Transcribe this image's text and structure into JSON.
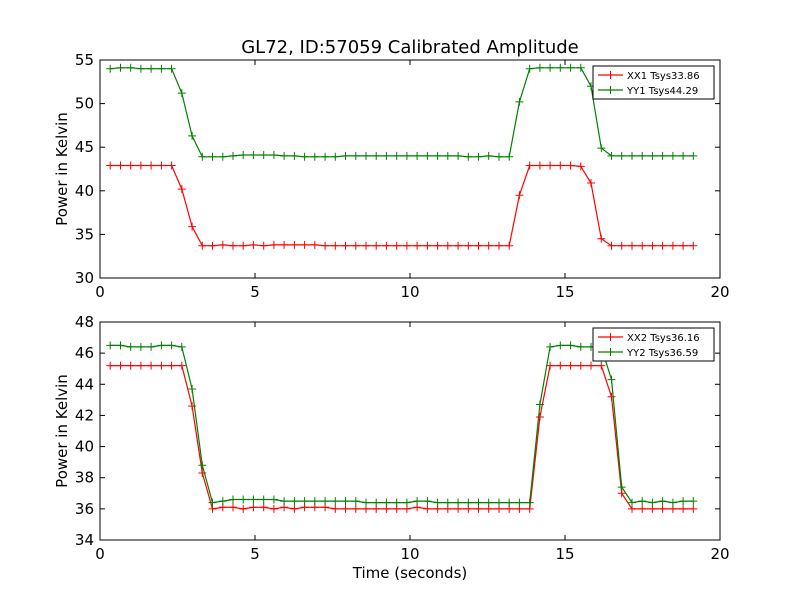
{
  "chart_data": {
    "title": "GL72, ID:57059 Calibrated Amplitude",
    "type": "line",
    "xlabel": "Time (seconds)",
    "x": [
      0.33,
      0.66,
      0.99,
      1.32,
      1.65,
      1.98,
      2.31,
      2.64,
      2.97,
      3.3,
      3.63,
      3.96,
      4.29,
      4.62,
      4.95,
      5.28,
      5.61,
      5.94,
      6.27,
      6.6,
      6.93,
      7.26,
      7.59,
      7.92,
      8.25,
      8.58,
      8.91,
      9.24,
      9.57,
      9.9,
      10.23,
      10.56,
      10.89,
      11.22,
      11.55,
      11.88,
      12.21,
      12.54,
      12.87,
      13.2,
      13.53,
      13.86,
      14.19,
      14.52,
      14.85,
      15.18,
      15.51,
      15.84,
      16.17,
      16.5,
      16.83,
      17.16,
      17.49,
      17.82,
      18.15,
      18.48,
      18.81,
      19.14
    ],
    "panels": [
      {
        "ylabel": "Power in Kelvin",
        "xlim": [
          0,
          20
        ],
        "ylim": [
          30,
          55
        ],
        "xticks": [
          0,
          5,
          10,
          15,
          20
        ],
        "yticks": [
          30,
          35,
          40,
          45,
          50,
          55
        ],
        "legend": "top-right",
        "series": [
          {
            "name": "XX1 Tsys33.86",
            "color": "#ff0000",
            "values": [
              42.9,
              42.9,
              42.9,
              42.9,
              42.9,
              42.9,
              42.9,
              40.2,
              35.9,
              33.7,
              33.7,
              33.8,
              33.7,
              33.7,
              33.8,
              33.7,
              33.8,
              33.8,
              33.8,
              33.8,
              33.8,
              33.7,
              33.7,
              33.7,
              33.7,
              33.7,
              33.7,
              33.7,
              33.7,
              33.7,
              33.7,
              33.7,
              33.7,
              33.7,
              33.7,
              33.7,
              33.7,
              33.7,
              33.7,
              33.7,
              39.5,
              42.9,
              42.9,
              42.9,
              42.9,
              42.9,
              42.8,
              40.9,
              34.5,
              33.7,
              33.7,
              33.7,
              33.7,
              33.7,
              33.7,
              33.7,
              33.7,
              33.7
            ]
          },
          {
            "name": "YY1 Tsys44.29",
            "color": "#008000",
            "values": [
              54.0,
              54.1,
              54.1,
              54.0,
              54.0,
              54.0,
              54.0,
              51.2,
              46.3,
              43.9,
              43.9,
              43.9,
              44.0,
              44.1,
              44.1,
              44.1,
              44.1,
              44.0,
              44.0,
              43.9,
              43.9,
              43.9,
              43.9,
              44.0,
              44.0,
              44.0,
              44.0,
              44.0,
              44.0,
              44.0,
              44.0,
              44.0,
              44.0,
              44.0,
              44.0,
              43.9,
              43.9,
              44.0,
              43.9,
              43.9,
              50.2,
              54.0,
              54.1,
              54.1,
              54.1,
              54.1,
              54.1,
              52.0,
              44.9,
              44.0,
              44.0,
              44.0,
              44.0,
              44.0,
              44.0,
              44.0,
              44.0,
              44.0
            ]
          }
        ]
      },
      {
        "ylabel": "Power in Kelvin",
        "xlim": [
          0,
          20
        ],
        "ylim": [
          34,
          48
        ],
        "xticks": [
          0,
          5,
          10,
          15,
          20
        ],
        "yticks": [
          34,
          36,
          38,
          40,
          42,
          44,
          46,
          48
        ],
        "legend": "top-right",
        "series": [
          {
            "name": "XX2 Tsys36.16",
            "color": "#ff0000",
            "values": [
              45.2,
              45.2,
              45.2,
              45.2,
              45.2,
              45.2,
              45.2,
              45.2,
              42.6,
              38.3,
              36.0,
              36.1,
              36.1,
              36.0,
              36.1,
              36.1,
              36.0,
              36.1,
              36.0,
              36.1,
              36.1,
              36.1,
              36.0,
              36.0,
              36.0,
              36.0,
              36.0,
              36.0,
              36.0,
              36.0,
              36.1,
              36.0,
              36.0,
              36.0,
              36.0,
              36.0,
              36.0,
              36.0,
              36.0,
              36.0,
              36.0,
              36.0,
              41.9,
              45.2,
              45.2,
              45.2,
              45.2,
              45.2,
              45.2,
              43.2,
              37.0,
              36.0,
              36.0,
              36.0,
              36.0,
              36.0,
              36.0,
              36.0
            ]
          },
          {
            "name": "YY2 Tsys36.59",
            "color": "#008000",
            "values": [
              46.5,
              46.5,
              46.4,
              46.4,
              46.4,
              46.5,
              46.5,
              46.4,
              43.7,
              38.8,
              36.4,
              36.5,
              36.6,
              36.6,
              36.6,
              36.6,
              36.6,
              36.5,
              36.5,
              36.5,
              36.5,
              36.5,
              36.5,
              36.5,
              36.5,
              36.4,
              36.4,
              36.4,
              36.4,
              36.4,
              36.5,
              36.5,
              36.4,
              36.4,
              36.4,
              36.4,
              36.4,
              36.4,
              36.4,
              36.4,
              36.4,
              36.4,
              42.7,
              46.4,
              46.5,
              46.5,
              46.4,
              46.4,
              46.4,
              44.3,
              37.4,
              36.4,
              36.5,
              36.4,
              36.5,
              36.4,
              36.5,
              36.5
            ]
          }
        ]
      }
    ]
  }
}
